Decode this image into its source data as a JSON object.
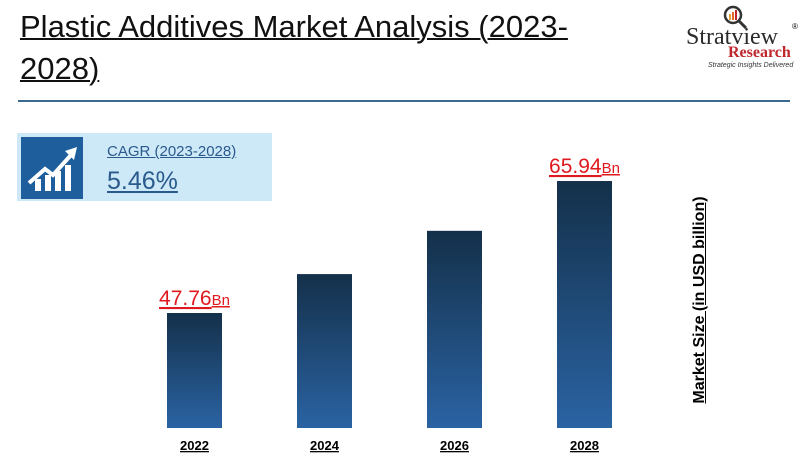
{
  "header": {
    "title": "Plastic Additives Market Analysis (2023-2028)"
  },
  "logo": {
    "name": "Stratview",
    "registered": "®",
    "sub": "Research",
    "tagline": "Strategic Insights Delivered"
  },
  "cagr": {
    "label": "CAGR (2023-2028)",
    "value": "5.46%",
    "icon": "growth-chart-icon"
  },
  "colors": {
    "bar_top": "#14304a",
    "bar_bottom": "#2a63a3",
    "value_label": "#e0191e"
  },
  "chart_data": {
    "type": "bar",
    "title": "Plastic Additives Market Analysis (2023-2028)",
    "ylabel": "Market Size (in USD billion)",
    "xlabel": "",
    "categories": [
      "2022",
      "2024",
      "2026",
      "2028"
    ],
    "values": [
      47.76,
      53.12,
      59.08,
      65.94
    ],
    "data_labels": [
      {
        "index": 0,
        "value": "47.76",
        "unit": "Bn"
      },
      {
        "index": 3,
        "value": "65.94",
        "unit": "Bn"
      }
    ],
    "grid": false
  }
}
